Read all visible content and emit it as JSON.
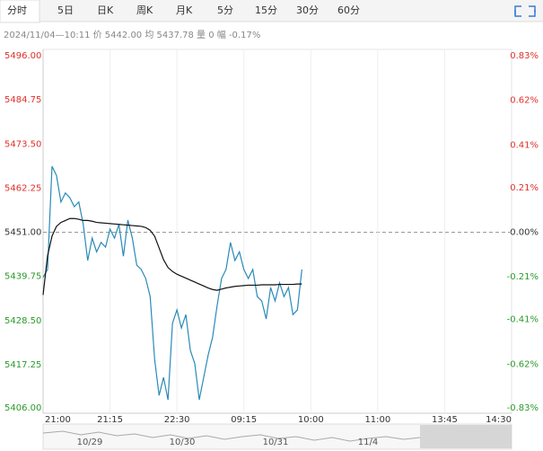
{
  "tabs": [
    "分时",
    "5日",
    "日K",
    "周K",
    "月K",
    "5分",
    "15分",
    "30分",
    "60分"
  ],
  "selected_tab": 0,
  "info": "2024/11/04—10:11  价 5442.00  均 5437.78  量 0  幅 -0.17%",
  "chart_data": {
    "type": "line",
    "xlim": [
      0,
      105
    ],
    "xticks": [
      {
        "value": 0,
        "label": "21:00"
      },
      {
        "value": 15,
        "label": "21:15"
      },
      {
        "value": 30,
        "label": "22:30"
      },
      {
        "value": 45,
        "label": "09:15"
      },
      {
        "value": 60,
        "label": "10:00"
      },
      {
        "value": 75,
        "label": "11:00"
      },
      {
        "value": 90,
        "label": "13:45"
      },
      {
        "value": 105,
        "label": "14:30"
      }
    ],
    "ylim": [
      5406,
      5496
    ],
    "yticks": [
      {
        "value": 5496,
        "label": "5496.00"
      },
      {
        "value": 5484.75,
        "label": "5484.75"
      },
      {
        "value": 5473.5,
        "label": "5473.50"
      },
      {
        "value": 5462.25,
        "label": "5462.25"
      },
      {
        "value": 5451,
        "label": "5451.00"
      },
      {
        "value": 5439.75,
        "label": "5439.75"
      },
      {
        "value": 5428.5,
        "label": "5428.50"
      },
      {
        "value": 5417.25,
        "label": "5417.25"
      },
      {
        "value": 5406,
        "label": "5406.00"
      }
    ],
    "y2lim": [
      -0.83,
      0.83
    ],
    "y2ticks": [
      {
        "value": 0.83,
        "label": "0.83%"
      },
      {
        "value": 0.62,
        "label": "0.62%"
      },
      {
        "value": 0.41,
        "label": "0.41%"
      },
      {
        "value": 0.21,
        "label": "0.21%"
      },
      {
        "value": 0,
        "label": "0.00%"
      },
      {
        "value": -0.21,
        "label": "-0.21%"
      },
      {
        "value": -0.41,
        "label": "-0.41%"
      },
      {
        "value": -0.62,
        "label": "-0.62%"
      },
      {
        "value": -0.83,
        "label": "-0.83%"
      }
    ],
    "up_color": "#e0302a",
    "down_color": "#2a9a2a",
    "series": [
      {
        "color": "#2a8ab8",
        "values": [
          5439.5,
          5441.5,
          5467.8,
          5465.5,
          5458.7,
          5461,
          5459.8,
          5457.5,
          5458.7,
          5453,
          5443.8,
          5449.5,
          5446,
          5448.4,
          5447.2,
          5451.8,
          5449.5,
          5453,
          5444.9,
          5454.1,
          5449.5,
          5442.6,
          5441.5,
          5439.2,
          5434.6,
          5418.6,
          5409.4,
          5414,
          5408.3,
          5427.8,
          5431.2,
          5426.6,
          5430,
          5420.9,
          5417.5,
          5408.3,
          5414,
          5419.7,
          5424.3,
          5432.3,
          5439.2,
          5441.5,
          5448.4,
          5443.8,
          5446,
          5441.5,
          5439.2,
          5441.5,
          5434.6,
          5433.5,
          5428.9,
          5436.9,
          5433.5,
          5438.1,
          5434.6,
          5436.9,
          5430,
          5431.2,
          5441.5
        ]
      },
      {
        "color": "#111111",
        "values": [
          5435,
          5445,
          5450,
          5452.5,
          5453.5,
          5454,
          5454.5,
          5454.5,
          5454.3,
          5454,
          5454,
          5453.8,
          5453.5,
          5453.4,
          5453.3,
          5453.2,
          5453.1,
          5453,
          5452.9,
          5452.8,
          5452.7,
          5452.6,
          5452.5,
          5452.2,
          5451.5,
          5450,
          5447,
          5444,
          5442,
          5441,
          5440.3,
          5439.8,
          5439.3,
          5438.8,
          5438.3,
          5437.8,
          5437.3,
          5436.8,
          5436.4,
          5436.2,
          5436.5,
          5436.8,
          5437,
          5437.2,
          5437.3,
          5437.4,
          5437.5,
          5437.5,
          5437.5,
          5437.6,
          5437.6,
          5437.6,
          5437.6,
          5437.7,
          5437.7,
          5437.7,
          5437.7,
          5437.8,
          5437.8
        ]
      }
    ]
  },
  "navigator": {
    "dates": [
      "10/29",
      "10/30",
      "10/31",
      "11/4"
    ]
  }
}
